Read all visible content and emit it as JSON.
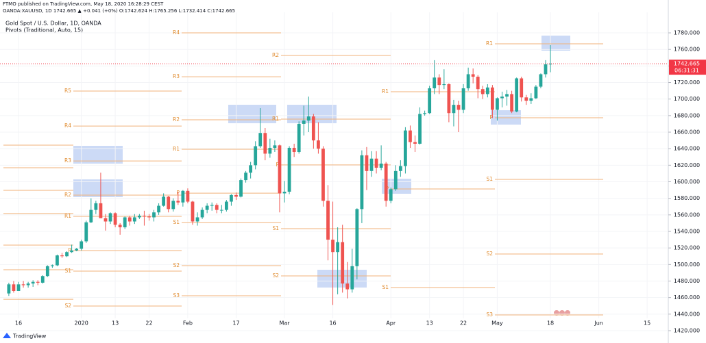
{
  "header": {
    "published": "FTMO published on TradingView.com, May 18, 2020 16:28:29 CEST",
    "symbol_line": "OANDA:XAUUSD, 1D  1742.665 ▲ +0.041 (+0%) O:1742.624 H:1765.256 L:1732.414 C:1742.665",
    "brand": "TradingView"
  },
  "chart_data": {
    "type": "candlestick",
    "title": "Gold Spot / U.S. Dollar, 1D, OANDA",
    "subtitle": "Pivots (Traditional, Auto, 15)",
    "up_color": "#26a69a",
    "down_color": "#ef5350",
    "pivot_color": "#f0b27a",
    "grid": true,
    "open": [
      1465,
      1476,
      1468,
      1476,
      1475,
      1477,
      1479,
      1478,
      1486,
      1498,
      1499,
      1511,
      1510,
      1515,
      1517,
      1519,
      1528,
      1551,
      1566,
      1574,
      1556,
      1552,
      1562,
      1548,
      1545,
      1557,
      1552,
      1557,
      1559,
      1558,
      1557,
      1563,
      1571,
      1582,
      1567,
      1577,
      1575,
      1589,
      1576,
      1552,
      1557,
      1566,
      1571,
      1572,
      1566,
      1566,
      1576,
      1584,
      1582,
      1602,
      1611,
      1620,
      1643,
      1659,
      1634,
      1641,
      1644,
      1586,
      1588,
      1641,
      1636,
      1670,
      1674,
      1679,
      1650,
      1640,
      1577,
      1530,
      1515,
      1527,
      1477,
      1470,
      1498,
      1567,
      1632,
      1613,
      1628,
      1617,
      1622,
      1577,
      1591,
      1613,
      1619,
      1662,
      1648,
      1646,
      1682,
      1683,
      1713,
      1726,
      1717,
      1718,
      1683,
      1693,
      1687,
      1713,
      1730,
      1727,
      1712,
      1706,
      1714,
      1687,
      1701,
      1703,
      1706,
      1685,
      1725,
      1702,
      1698,
      1701,
      1715,
      1730,
      1742.624
    ],
    "high": [
      1478,
      1480,
      1479,
      1480,
      1479,
      1481,
      1481,
      1487,
      1499,
      1500,
      1512,
      1514,
      1516,
      1524,
      1520,
      1530,
      1553,
      1580,
      1577,
      1611,
      1561,
      1563,
      1563,
      1550,
      1558,
      1559,
      1561,
      1561,
      1565,
      1561,
      1566,
      1574,
      1586,
      1583,
      1580,
      1588,
      1590,
      1592,
      1577,
      1563,
      1569,
      1574,
      1575,
      1574,
      1572,
      1578,
      1585,
      1587,
      1604,
      1613,
      1624,
      1649,
      1689,
      1665,
      1652,
      1650,
      1645,
      1601,
      1643,
      1646,
      1673,
      1692,
      1703,
      1682,
      1672,
      1643,
      1596,
      1576,
      1545,
      1548,
      1503,
      1519,
      1568,
      1638,
      1642,
      1637,
      1637,
      1644,
      1624,
      1593,
      1620,
      1626,
      1666,
      1668,
      1656,
      1690,
      1686,
      1716,
      1747,
      1730,
      1736,
      1719,
      1699,
      1698,
      1718,
      1738,
      1737,
      1729,
      1716,
      1718,
      1717,
      1702,
      1709,
      1711,
      1710,
      1726,
      1727,
      1705,
      1707,
      1717,
      1731,
      1747,
      1765.256
    ],
    "low": [
      1462,
      1466,
      1468,
      1472,
      1472,
      1473,
      1475,
      1477,
      1485,
      1496,
      1498,
      1508,
      1509,
      1514,
      1516,
      1517,
      1526,
      1550,
      1561,
      1557,
      1541,
      1549,
      1545,
      1536,
      1543,
      1547,
      1549,
      1555,
      1547,
      1553,
      1552,
      1560,
      1570,
      1563,
      1564,
      1572,
      1570,
      1574,
      1548,
      1547,
      1555,
      1562,
      1565,
      1562,
      1562,
      1564,
      1571,
      1578,
      1581,
      1599,
      1604,
      1615,
      1641,
      1626,
      1629,
      1636,
      1563,
      1575,
      1585,
      1630,
      1634,
      1656,
      1660,
      1640,
      1634,
      1570,
      1505,
      1451,
      1464,
      1466,
      1459,
      1466,
      1482,
      1550,
      1590,
      1606,
      1610,
      1614,
      1570,
      1574,
      1589,
      1606,
      1610,
      1641,
      1636,
      1645,
      1680,
      1682,
      1706,
      1706,
      1712,
      1672,
      1667,
      1660,
      1683,
      1710,
      1719,
      1701,
      1700,
      1702,
      1677,
      1674,
      1690,
      1692,
      1683,
      1684,
      1697,
      1693,
      1694,
      1700,
      1713,
      1726,
      1732.414
    ],
    "close": [
      1476,
      1468,
      1476,
      1475,
      1477,
      1479,
      1478,
      1486,
      1498,
      1499,
      1511,
      1510,
      1515,
      1517,
      1519,
      1528,
      1551,
      1566,
      1574,
      1556,
      1552,
      1562,
      1548,
      1545,
      1557,
      1552,
      1557,
      1559,
      1558,
      1557,
      1563,
      1571,
      1582,
      1567,
      1577,
      1575,
      1589,
      1576,
      1552,
      1557,
      1566,
      1571,
      1572,
      1566,
      1566,
      1576,
      1584,
      1582,
      1602,
      1611,
      1620,
      1643,
      1659,
      1634,
      1641,
      1644,
      1586,
      1588,
      1641,
      1636,
      1670,
      1674,
      1679,
      1650,
      1640,
      1577,
      1530,
      1515,
      1527,
      1477,
      1470,
      1498,
      1567,
      1632,
      1613,
      1628,
      1617,
      1622,
      1577,
      1591,
      1613,
      1619,
      1662,
      1648,
      1646,
      1682,
      1683,
      1713,
      1726,
      1717,
      1718,
      1683,
      1693,
      1687,
      1713,
      1730,
      1727,
      1712,
      1706,
      1714,
      1687,
      1701,
      1703,
      1706,
      1685,
      1725,
      1702,
      1698,
      1701,
      1715,
      1730,
      1742,
      1742.665
    ],
    "xticks": [
      {
        "value": 2,
        "label": "16"
      },
      {
        "value": 15,
        "label": "2020"
      },
      {
        "value": 22,
        "label": "13"
      },
      {
        "value": 29,
        "label": "22"
      },
      {
        "value": 37,
        "label": "Feb"
      },
      {
        "value": 47,
        "label": "17"
      },
      {
        "value": 57,
        "label": "Mar"
      },
      {
        "value": 67,
        "label": "16"
      },
      {
        "value": 79,
        "label": "Apr"
      },
      {
        "value": 87,
        "label": "13"
      },
      {
        "value": 94,
        "label": "22"
      },
      {
        "value": 101,
        "label": "May"
      },
      {
        "value": 112,
        "label": "18"
      },
      {
        "value": 122,
        "label": "Jun"
      },
      {
        "value": 132,
        "label": "15"
      }
    ],
    "ylim": [
      1414.2,
      1788.3
    ],
    "yticks": [
      {
        "value": 1420,
        "label": "1420.000"
      },
      {
        "value": 1440,
        "label": "1440.000"
      },
      {
        "value": 1460,
        "label": "1460.000"
      },
      {
        "value": 1480,
        "label": "1480.000"
      },
      {
        "value": 1500,
        "label": "1500.000"
      },
      {
        "value": 1520,
        "label": "1520.000"
      },
      {
        "value": 1540,
        "label": "1540.000"
      },
      {
        "value": 1560,
        "label": "1560.000"
      },
      {
        "value": 1580,
        "label": "1580.000"
      },
      {
        "value": 1600,
        "label": "1600.000"
      },
      {
        "value": 1620,
        "label": "1620.000"
      },
      {
        "value": 1640,
        "label": "1640.000"
      },
      {
        "value": 1660,
        "label": "1660.000"
      },
      {
        "value": 1680,
        "label": "1680.000"
      },
      {
        "value": 1700,
        "label": "1700.000"
      },
      {
        "value": 1720,
        "label": "1720.000"
      },
      {
        "value": 1740,
        "label": "1740.000"
      },
      {
        "value": 1760,
        "label": "1760.000"
      },
      {
        "value": 1780,
        "label": "1780.000"
      }
    ],
    "last_price": 1742.665,
    "last_price_color": "#f23645",
    "countdown": "06:31:31",
    "pivots": [
      [
        {
          "label": null,
          "value": 1644.3
        },
        {
          "label": null,
          "value": 1617
        },
        {
          "label": null,
          "value": 1589.7
        },
        {
          "label": null,
          "value": 1561.6
        },
        {
          "label": null,
          "value": 1523.5
        },
        {
          "label": null,
          "value": 1493.7
        },
        {
          "label": null,
          "value": 1458
        }
      ],
      [
        {
          "label": "R5",
          "value": 1709.7
        },
        {
          "label": "R4",
          "value": 1667.4
        },
        {
          "label": "R3",
          "value": 1625.2
        },
        {
          "label": "R2",
          "value": 1583.9
        },
        {
          "label": "R1",
          "value": 1558.2
        },
        {
          "label": "P",
          "value": 1516.8
        },
        {
          "label": "S1",
          "value": 1492
        },
        {
          "label": "S2",
          "value": 1449.8
        }
      ],
      [
        {
          "label": "R4",
          "value": 1780
        },
        {
          "label": "R3",
          "value": 1727
        },
        {
          "label": "R2",
          "value": 1674.9
        },
        {
          "label": "R1",
          "value": 1639.3
        },
        {
          "label": "P",
          "value": 1586.3
        },
        {
          "label": "S1",
          "value": 1550.8
        },
        {
          "label": "S2",
          "value": 1498.6
        },
        {
          "label": "S3",
          "value": 1462.2
        }
      ],
      [
        {
          "label": "R2",
          "value": 1752.7
        },
        {
          "label": "R1",
          "value": 1675.7
        },
        {
          "label": "P",
          "value": 1620.4
        },
        {
          "label": "S1",
          "value": 1543.3
        },
        {
          "label": "S2",
          "value": 1486.2
        }
      ],
      [
        {
          "label": "R1",
          "value": 1708.8
        },
        {
          "label": "P",
          "value": 1591.3
        },
        {
          "label": "S1",
          "value": 1472.1
        }
      ],
      [
        {
          "label": "R1",
          "value": 1766.8
        },
        {
          "label": "P",
          "value": 1677.4
        },
        {
          "label": "S1",
          "value": 1602.9
        },
        {
          "label": "S2",
          "value": 1512.7
        },
        {
          "label": "S3",
          "value": 1439
        }
      ]
    ]
  }
}
